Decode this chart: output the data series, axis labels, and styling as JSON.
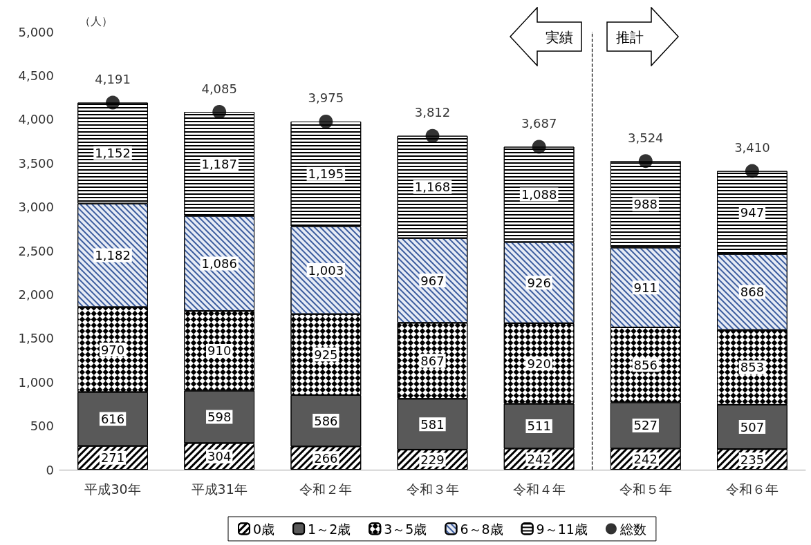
{
  "chart_data": {
    "type": "bar",
    "stacked": true,
    "ylabel": "（人）",
    "categories": [
      "平成30年",
      "平成31年",
      "令和２年",
      "令和３年",
      "令和４年",
      "令和５年",
      "令和６年"
    ],
    "ylim": [
      0,
      5000
    ],
    "yticks": [
      0,
      500,
      {
        "value": 1000,
        "label": "1,000"
      },
      {
        "value": 1500,
        "label": "1,500"
      },
      {
        "value": 2000,
        "label": "2,000"
      },
      {
        "value": 2500,
        "label": "2,500"
      },
      {
        "value": 3000,
        "label": "3,000"
      },
      {
        "value": 3500,
        "label": "3,500"
      },
      {
        "value": 4000,
        "label": "4,000"
      },
      {
        "value": 4500,
        "label": "4,500"
      },
      {
        "value": 5000,
        "label": "5,000"
      }
    ],
    "grid": false,
    "legend": "bottom",
    "series": [
      {
        "name": "0歳",
        "color": "#ffffff",
        "values": [
          271,
          304,
          266,
          229,
          242,
          242,
          235
        ],
        "value_labels": [
          "271",
          "304",
          "266",
          "229",
          "242",
          "242",
          "235"
        ]
      },
      {
        "name": "1～2歳",
        "color": "#595959",
        "values": [
          616,
          598,
          586,
          581,
          511,
          527,
          507
        ],
        "value_labels": [
          "616",
          "598",
          "586",
          "581",
          "511",
          "527",
          "507"
        ]
      },
      {
        "name": "3～5歳",
        "color": "#ffffff",
        "values": [
          970,
          910,
          925,
          867,
          920,
          856,
          853
        ],
        "value_labels": [
          "970",
          "910",
          "925",
          "867",
          "920",
          "856",
          "853"
        ]
      },
      {
        "name": "6～8歳",
        "color": "#e6ebf5",
        "values": [
          1182,
          1086,
          1003,
          967,
          926,
          911,
          868
        ],
        "value_labels": [
          "1,182",
          "1,086",
          "1,003",
          "967",
          "926",
          "911",
          "868"
        ]
      },
      {
        "name": "9～11歳",
        "color": "#ffffff",
        "values": [
          1152,
          1187,
          1195,
          1168,
          1088,
          988,
          947
        ],
        "value_labels": [
          "1,152",
          "1,187",
          "1,195",
          "1,168",
          "1,088",
          "988",
          "947"
        ]
      },
      {
        "name": "総数",
        "type": "scatter",
        "color": "#000000",
        "marker": "circle",
        "values": [
          4191,
          4085,
          3975,
          3812,
          3687,
          3524,
          3410
        ],
        "value_labels": [
          "4,191",
          "4,085",
          "3,975",
          "3,812",
          "3,687",
          "3,524",
          "3,410"
        ]
      }
    ],
    "annotations": [
      "実績",
      "推計"
    ]
  }
}
